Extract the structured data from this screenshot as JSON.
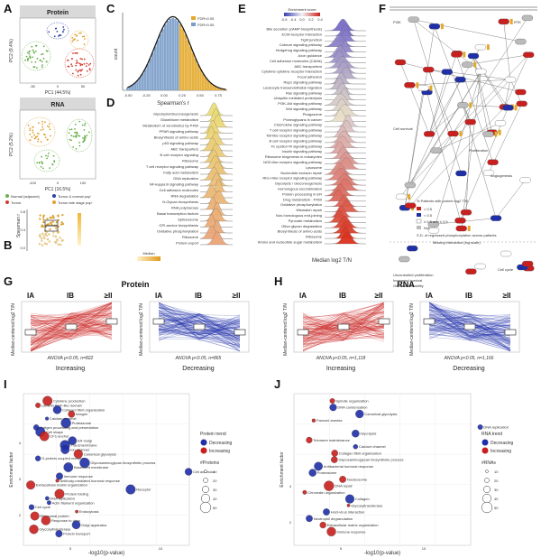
{
  "colors": {
    "tumor": "#d43a2f",
    "normal": "#6ab04c",
    "early": "#2a3fa8",
    "late": "#e0a030",
    "protein_red": "#c8201e",
    "protein_blue": "#1f2fa8",
    "gold": "#e3a82a",
    "grey": "#7a7a7a"
  },
  "panel_letters": [
    "A",
    "B",
    "C",
    "D",
    "E",
    "F",
    "G",
    "H",
    "I",
    "J"
  ],
  "A": {
    "top_title": "Protein",
    "bottom_title": "RNA",
    "top_xlabel": "PC1 (44.5%)",
    "top_ylabel": "PC2 (9.4%)",
    "bottom_xlabel": "PC1 (16.5%)",
    "bottom_ylabel": "PC2 (5.2%)",
    "top_ticks": [
      "-50",
      "0",
      "50"
    ],
    "bottom_ticks": [
      "-100",
      "0",
      "100"
    ],
    "legend": [
      "Normal (adjacent)",
      "Tumor",
      "Tumor & normal pop'",
      "Tumor late stage pop'"
    ]
  },
  "B": {
    "ylabel": "Spearman r",
    "ticks": [
      "0.8",
      "0.4",
      "0.0"
    ]
  },
  "C": {
    "ylabel": "count",
    "xlabel": "Spearman's r",
    "ticks": [
      "-0.50",
      "-0.25",
      "0.00",
      "0.25",
      "0.50",
      "0.75"
    ],
    "legend": [
      "FDR<0.05",
      "FDR>0.05"
    ]
  },
  "D": {
    "xlabel": "Median",
    "terms": [
      "Glycolysis/Gluconeogenesis",
      "Glutathione metabolism",
      "Metabolism of xenobiotics by P450",
      "PPAR signaling pathway",
      "Biosynthesis of amino acids",
      "p53 signaling pathway",
      "ABC transporters",
      "B cell receptor signaling",
      "Ribosome",
      "T cell receptor signaling pathway",
      "Fatty acid metabolism",
      "DNA replication",
      "NF-kappa B signaling pathway",
      "Cell adhesion molecules",
      "RNA degradation",
      "N-Glycan biosynthesis",
      "RNA polymerase",
      "Basal transcription factors",
      "Spliceosome",
      "GPI-anchor biosynthesis",
      "Oxidative phosphorylation",
      "Ribosome",
      "Protein export"
    ]
  },
  "E": {
    "legend_title": "Enrichment score",
    "xlabel": "Median log2 T/N",
    "scale_ticks": [
      "-0.6",
      "-0.4",
      "0.0",
      "0.2",
      "0.4"
    ],
    "terms": [
      "Bile secretion (cAMP biosynthesis)",
      "ECM-receptor interaction",
      "Tight junction",
      "Calcium signaling pathway",
      "Hedgehog signaling pathway",
      "Axon guidance",
      "Cell adhesion molecules (CAMs)",
      "ABC transporters",
      "Cytokine-cytokine receptor interaction",
      "Focal adhesion",
      "Rap1 signaling pathway",
      "Leukocyte transendothelial migration",
      "Ras signaling pathway",
      "Ubiquitin mediated proteolysis",
      "PI3K-Akt signaling pathway",
      "Wnt signaling pathway",
      "Phagosome",
      "Proteoglycans in cancer",
      "Chemokine signaling pathway",
      "T cell receptor signaling pathway",
      "Toll-like receptor signaling pathway",
      "B cell receptor signaling pathway",
      "Fc epsilon RI signaling pathway",
      "Insulin signaling pathway",
      "Ribosome biogenesis in eukaryotes",
      "NOD-like receptor signaling pathway",
      "Lysosome",
      "Nucleotide excision repair",
      "RIG-I-like receptor signaling pathway",
      "Glycolysis / Gluconeogenesis",
      "Homologous recombination",
      "Protein processing in ER",
      "Drug metabolism - P450",
      "Oxidative phosphorylation",
      "Mismatch repair",
      "Non-homologous end-joining",
      "Pyruvate metabolism",
      "Other glycan degradation",
      "Biosynthesis of amino acids",
      "Ribosome",
      "Amino and nucleotide sugar metabolism"
    ]
  },
  "F": {
    "legend_title": "% Patients with protein log2 T/N",
    "legend_items": [
      "> 0.5",
      "< 0.5",
      "≥ 0.5 and ≤ 0.5",
      "N/A"
    ],
    "legend2": "S.D. of regressed phosphorylation across patients",
    "labels": [
      "PI3K",
      "RTK",
      "EGFR",
      "PDGFRB",
      "NRAS",
      "KRAS",
      "HRAS",
      "BRAF",
      "RAF1",
      "MAP2K1",
      "MAP2K2",
      "MAPK1",
      "MAPK3",
      "AKT1",
      "AKT2",
      "MTOR",
      "RPS6",
      "PTEN",
      "TSC2",
      "Cell survival",
      "Proliferation",
      "Angiogenesis",
      "Cell cycle",
      "Missing interaction (log scale)",
      "Uncontrolled proliferation",
      "Increased survival",
      "Genomic instability",
      "CDKN2A",
      "RB1",
      "CCND1",
      "CDK4",
      "TP53",
      "MDM2"
    ]
  },
  "G": {
    "title": "Protein",
    "stages": [
      "IA",
      "IB",
      "≥II"
    ],
    "ylabel": "Median-centered log2 T/N",
    "left_anova": "ANOVA p<0.05, n=822",
    "right_anova": "ANOVA p<0.05, n=865",
    "left_trend": "Increasing",
    "right_trend": "Decreasing"
  },
  "H": {
    "title": "RNA",
    "stages": [
      "IA",
      "IB",
      "≥II"
    ],
    "ylabel": "Median-centered log2 T/N",
    "left_anova": "ANOVA p<0.05, n=1,118",
    "right_anova": "ANOVA p<0.05, n=1,166",
    "left_trend": "Increasing",
    "right_trend": "Decreasing"
  },
  "I": {
    "xlabel": "-log10(p-value)",
    "ylabel": "Enrichment factor",
    "legend_title": "Protein trend",
    "legend_items": [
      "Decreasing",
      "Increasing"
    ],
    "size_title": "#Proteins",
    "size_ticks": [
      "10",
      "20",
      "30",
      "40",
      "50"
    ],
    "x_ticks": [
      "5",
      "10"
    ],
    "y_ticks": [
      "2",
      "3",
      "4"
    ],
    "terms": [
      "Cytokine production",
      "Laminin EGF-like domain",
      "Collagen fibril organization",
      "Integrin",
      "Calcium channel",
      "Proteasome",
      "Antigen processing and presentation",
      "Cell shape",
      "CF1-anchor",
      "ER-Golgi",
      "Transmembrane",
      "Ion channel",
      "Canonical glycolysis",
      "G-protein coupled receptor",
      "Glycosaminoglycan biosynthetic process",
      "Basement membrane",
      "Cell adhesion",
      "Immune response",
      "Antibody-mediated humoral response",
      "Extracellular matrix organization",
      "Receptor",
      "Protein folding",
      "DNA replication",
      "Actin filament organization",
      "Cell cycle",
      "Endocytosis",
      "Ribosomal protein",
      "Response to virus",
      "Golgi apparatus",
      "Glycosyltransferase",
      "Protein transport"
    ]
  },
  "J": {
    "xlabel": "-log10(p-value)",
    "ylabel": "Enrichment factor",
    "legend_title": "RNA trend",
    "legend_items": [
      "Decreasing",
      "Increasing"
    ],
    "size_title": "#RNAs",
    "size_ticks": [
      "10",
      "20",
      "30",
      "40",
      "50"
    ],
    "x_ticks": [
      "5",
      "10"
    ],
    "y_ticks": [
      "2",
      "4"
    ],
    "terms": [
      "Spindle organization",
      "DNA condensation",
      "Canonical glycolysis",
      "Fanconi anemia",
      "DNA replication",
      "Glycolysis",
      "Telomere maintenance",
      "Calcium channel",
      "Collagen fibril organization",
      "Glycosaminoglycan biosynthetic process",
      "Antibacterial humoral response",
      "Proteasome",
      "Nucleosome",
      "DNA repair",
      "Chromatin organization",
      "Collagen",
      "Glycosyltransferase",
      "Host-virus interaction",
      "Neutrophil degranulation",
      "Extracellular matrix organization",
      "Immune response"
    ]
  }
}
